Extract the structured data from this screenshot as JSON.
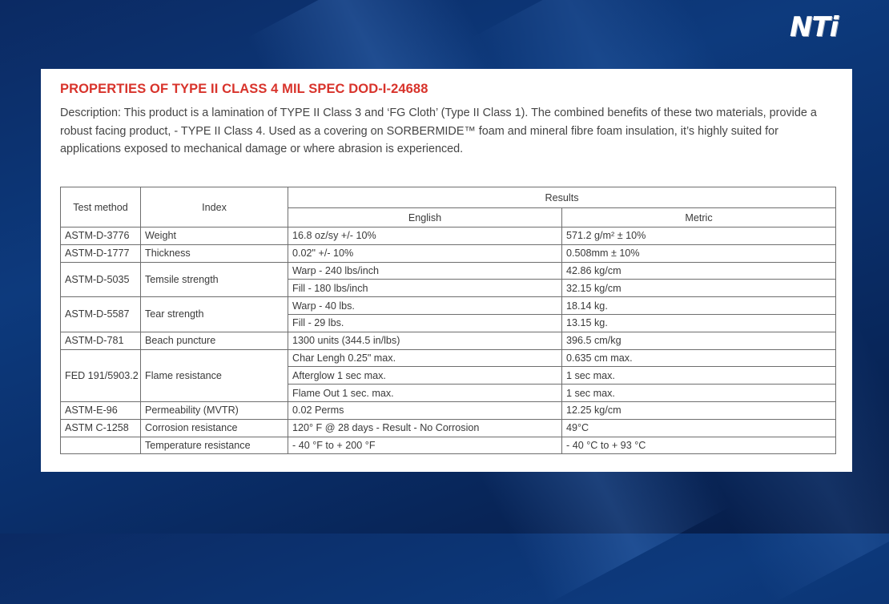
{
  "logo": {
    "text": "NTi"
  },
  "heading": "PROPERTIES OF TYPE II CLASS 4 MIL SPEC DOD-I-24688",
  "description": "Description: This product is a lamination of TYPE II Class 3 and ‘FG Cloth’ (Type II Class 1). The combined benefits of these two materials, provide a robust facing product, - TYPE II Class 4. Used as a covering on SORBERMIDE™ foam and mineral fibre foam insulation, it’s highly suited for applications exposed to mechanical damage or where abrasion is experienced.",
  "table": {
    "headers": {
      "test_method": "Test method",
      "index": "Index",
      "results": "Results",
      "english": "English",
      "metric": "Metric"
    },
    "rows": {
      "weight": {
        "test": "ASTM-D-3776",
        "index": "Weight",
        "english": "16.8 oz/sy +/- 10%",
        "metric": "571.2 g/m² ± 10%"
      },
      "thickness": {
        "test": "ASTM-D-1777",
        "index": "Thickness",
        "english": "0.02\" +/- 10%",
        "metric": "0.508mm ± 10%"
      },
      "tensile": {
        "test": "ASTM-D-5035",
        "index": "Temsile strength",
        "english_1": "Warp - 240 lbs/inch",
        "metric_1": "42.86 kg/cm",
        "english_2": "Fill - 180 lbs/inch",
        "metric_2": "32.15 kg/cm"
      },
      "tear": {
        "test": "ASTM-D-5587",
        "index": "Tear strength",
        "english_1": "Warp - 40 lbs.",
        "metric_1": "18.14 kg.",
        "english_2": "Fill - 29 lbs.",
        "metric_2": "13.15 kg."
      },
      "puncture": {
        "test": "ASTM-D-781",
        "index": "Beach puncture",
        "english": "1300 units (344.5 in/lbs)",
        "metric": "396.5 cm/kg"
      },
      "flame": {
        "test": "FED 191/5903.2",
        "index": "Flame resistance",
        "english_1": "Char Lengh 0.25\" max.",
        "metric_1": "0.635 cm max.",
        "english_2": "Afterglow 1 sec max.",
        "metric_2": "1 sec max.",
        "english_3": "Flame Out 1 sec. max.",
        "metric_3": "1 sec max."
      },
      "permeability": {
        "test": "ASTM-E-96",
        "index": "Permeability (MVTR)",
        "english": "0.02 Perms",
        "metric": "12.25 kg/cm"
      },
      "corrosion": {
        "test": "ASTM C-1258",
        "index": "Corrosion resistance",
        "english": "120° F @ 28 days -  Result - No Corrosion",
        "metric": "49°C"
      },
      "temperature": {
        "test": "",
        "index": "Temperature resistance",
        "english": "- 40 °F to + 200 °F",
        "metric": "- 40 °C to + 93 °C"
      }
    }
  }
}
